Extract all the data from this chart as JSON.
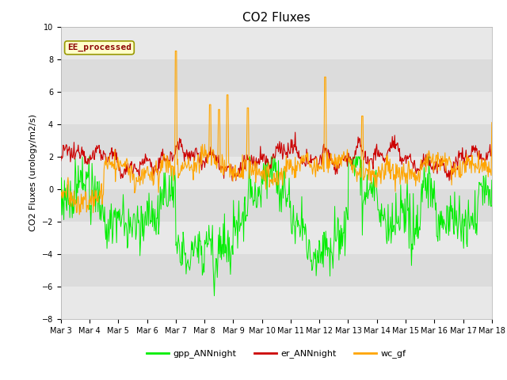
{
  "title": "CO2 Fluxes",
  "ylabel": "CO2 Fluxes (urology/m2/s)",
  "ylim": [
    -8,
    10
  ],
  "yticks": [
    -8,
    -6,
    -4,
    -2,
    0,
    2,
    4,
    6,
    8,
    10
  ],
  "colors": {
    "gpp": "#00ee00",
    "er": "#cc0000",
    "wc": "#ffa500"
  },
  "legend_label": "EE_processed",
  "bg_color": "#dcdcdc",
  "bg_stripe_color": "#e8e8e8",
  "line_series": [
    "gpp_ANNnight",
    "er_ANNnight",
    "wc_gf"
  ],
  "xtick_labels": [
    "Mar 3",
    "Mar 4",
    "Mar 5",
    "Mar 6",
    "Mar 7",
    "Mar 8",
    "Mar 9",
    "Mar 10",
    "Mar 11",
    "Mar 12",
    "Mar 13",
    "Mar 14",
    "Mar 15",
    "Mar 16",
    "Mar 17",
    "Mar 18"
  ],
  "title_fontsize": 11,
  "axis_fontsize": 8,
  "tick_fontsize": 7,
  "n_points": 720,
  "seed": 12345
}
